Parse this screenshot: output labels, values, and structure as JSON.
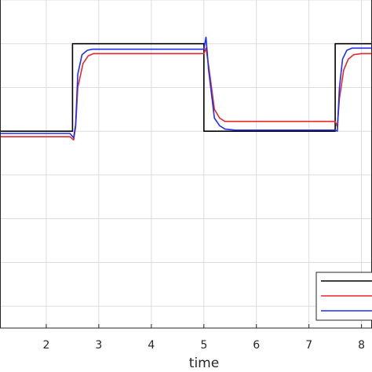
{
  "chart_data": {
    "type": "line",
    "title": "",
    "xlabel": "time",
    "ylabel": "",
    "xlim": [
      1,
      8.2
    ],
    "ylim": [
      -0.3,
      1.2
    ],
    "x_ticks": [
      2,
      3,
      4,
      5,
      6,
      7,
      8
    ],
    "x_tick_labels": [
      "2",
      "3",
      "4",
      "5",
      "6",
      "7",
      "8"
    ],
    "y_ticks": [
      -0.2,
      0,
      0.2,
      0.4,
      0.6,
      0.8,
      1.0,
      1.2
    ],
    "grid": true,
    "legend_placement": "bottom-right",
    "series": [
      {
        "color": "#000000",
        "x": [
          1,
          2.5,
          2.5,
          5.0,
          5.0,
          7.5,
          7.5,
          8.2
        ],
        "y": [
          0.6,
          0.6,
          1.0,
          1.0,
          0.6,
          0.6,
          1.0,
          1.0
        ]
      },
      {
        "color": "#e8262a",
        "x": [
          1,
          2.45,
          2.52,
          2.56,
          2.6,
          2.7,
          2.8,
          2.9,
          3.1,
          5.0,
          5.04,
          5.09,
          5.2,
          5.3,
          5.4,
          5.6,
          7.5,
          7.54,
          7.58,
          7.66,
          7.75,
          7.85,
          8.0,
          8.2
        ],
        "y": [
          0.575,
          0.575,
          0.56,
          0.62,
          0.8,
          0.91,
          0.945,
          0.955,
          0.955,
          0.955,
          0.98,
          0.9,
          0.7,
          0.66,
          0.645,
          0.645,
          0.645,
          0.62,
          0.75,
          0.88,
          0.93,
          0.95,
          0.955,
          0.955
        ]
      },
      {
        "color": "#1f2ff0",
        "x": [
          1,
          2.45,
          2.52,
          2.56,
          2.6,
          2.68,
          2.78,
          2.88,
          3.1,
          5.0,
          5.04,
          5.09,
          5.2,
          5.3,
          5.4,
          5.6,
          7.5,
          7.54,
          7.58,
          7.64,
          7.72,
          7.82,
          8.0,
          8.2
        ],
        "y": [
          0.59,
          0.59,
          0.57,
          0.63,
          0.86,
          0.95,
          0.97,
          0.975,
          0.975,
          0.975,
          1.03,
          0.88,
          0.66,
          0.625,
          0.61,
          0.605,
          0.605,
          0.6,
          0.8,
          0.93,
          0.97,
          0.98,
          0.98,
          0.98
        ]
      }
    ]
  }
}
